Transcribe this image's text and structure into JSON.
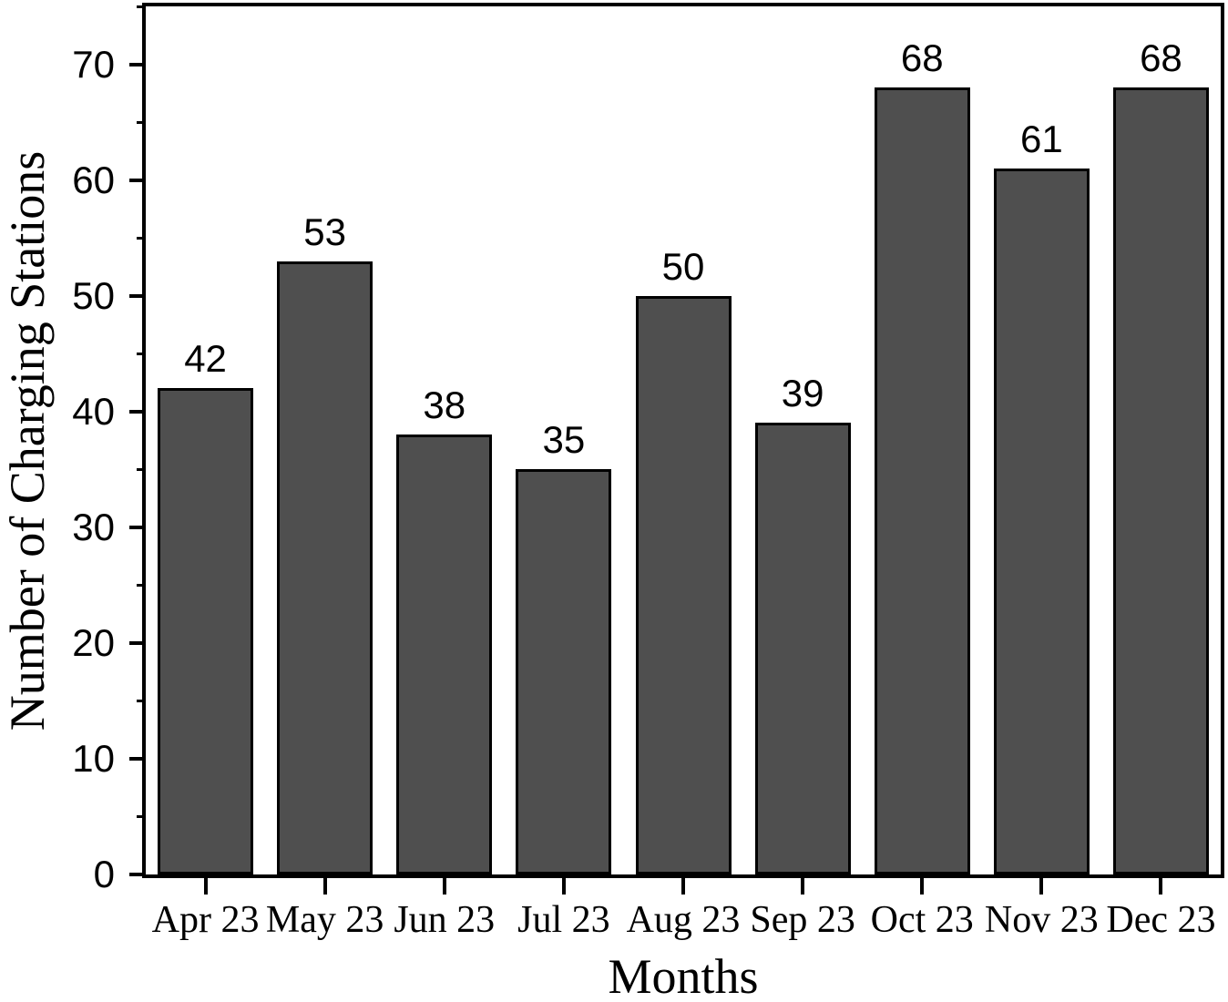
{
  "chart_data": {
    "type": "bar",
    "title": "",
    "categories": [
      "Apr 23",
      "May 23",
      "Jun 23",
      "Jul 23",
      "Aug 23",
      "Sep 23",
      "Oct 23",
      "Nov 23",
      "Dec 23"
    ],
    "values": [
      42,
      53,
      38,
      35,
      50,
      39,
      68,
      61,
      68
    ],
    "bar_value_labels": [
      "42",
      "53",
      "38",
      "35",
      "50",
      "39",
      "68",
      "61",
      "68"
    ],
    "xlabel": "Months",
    "ylabel": "Number of Charging Stations",
    "ylim": [
      0,
      75
    ],
    "ytick_major_step": 10,
    "ytick_minor_step": 5,
    "ytick_labels": [
      "0",
      "10",
      "20",
      "30",
      "40",
      "50",
      "60",
      "70"
    ],
    "grid": false,
    "legend": null,
    "colors": {
      "bar_fill": "#4f4f4f",
      "bar_edge": "#000000",
      "axis": "#000000",
      "text": "#000000",
      "background": "#ffffff"
    }
  }
}
